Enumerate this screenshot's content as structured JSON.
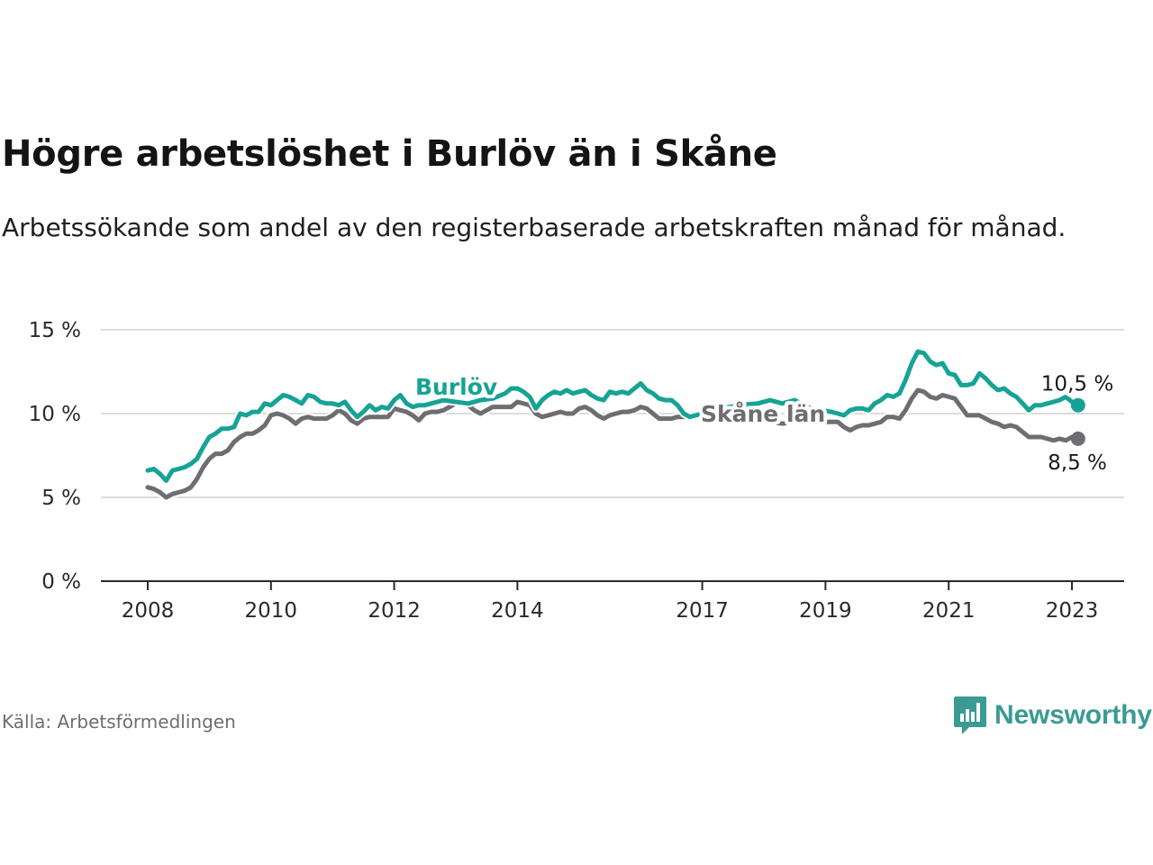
{
  "title": "Högre arbetslöshet i Burlöv än i Skåne",
  "subtitle": "Arbetssökande som andel av den registerbaserade arbetskraften månad för månad.",
  "source": "Källa: Arbetsförmedlingen",
  "brand": {
    "name": "Newsworthy",
    "icon": "newsworthy-logo-icon",
    "color": "#3a9a94"
  },
  "chart_data": {
    "type": "line",
    "title": "Högre arbetslöshet i Burlöv än i Skåne",
    "xlabel": "",
    "ylabel": "",
    "xlim": [
      2008,
      2023.1
    ],
    "ylim": [
      0,
      15
    ],
    "xticks": [
      {
        "value": 2008,
        "label": "2008"
      },
      {
        "value": 2010,
        "label": "2010"
      },
      {
        "value": 2012,
        "label": "2012"
      },
      {
        "value": 2014,
        "label": "2014"
      },
      {
        "value": 2017,
        "label": "2017"
      },
      {
        "value": 2019,
        "label": "2019"
      },
      {
        "value": 2021,
        "label": "2021"
      },
      {
        "value": 2023,
        "label": "2023"
      }
    ],
    "yticks": [
      {
        "value": 0,
        "label": "0 %"
      },
      {
        "value": 5,
        "label": "5 %"
      },
      {
        "value": 10,
        "label": "10 %"
      },
      {
        "value": 15,
        "label": "15 %"
      }
    ],
    "grid": true,
    "series": [
      {
        "name": "Burlöv",
        "color": "#16a395",
        "end_label": "10,5 %",
        "points": [
          [
            2008.0,
            6.6
          ],
          [
            2008.1,
            6.7
          ],
          [
            2008.2,
            6.4
          ],
          [
            2008.3,
            6.0
          ],
          [
            2008.4,
            6.6
          ],
          [
            2008.5,
            6.7
          ],
          [
            2008.6,
            6.8
          ],
          [
            2008.7,
            7.0
          ],
          [
            2008.8,
            7.3
          ],
          [
            2008.9,
            8.0
          ],
          [
            2009.0,
            8.6
          ],
          [
            2009.1,
            8.8
          ],
          [
            2009.2,
            9.1
          ],
          [
            2009.3,
            9.1
          ],
          [
            2009.4,
            9.2
          ],
          [
            2009.5,
            10.0
          ],
          [
            2009.6,
            9.9
          ],
          [
            2009.7,
            10.1
          ],
          [
            2009.8,
            10.1
          ],
          [
            2009.9,
            10.6
          ],
          [
            2010.0,
            10.5
          ],
          [
            2010.1,
            10.8
          ],
          [
            2010.2,
            11.1
          ],
          [
            2010.3,
            11.0
          ],
          [
            2010.4,
            10.8
          ],
          [
            2010.5,
            10.6
          ],
          [
            2010.6,
            11.1
          ],
          [
            2010.7,
            11.0
          ],
          [
            2010.8,
            10.7
          ],
          [
            2010.9,
            10.6
          ],
          [
            2011.0,
            10.6
          ],
          [
            2011.1,
            10.5
          ],
          [
            2011.2,
            10.7
          ],
          [
            2011.3,
            10.2
          ],
          [
            2011.4,
            9.8
          ],
          [
            2011.5,
            10.1
          ],
          [
            2011.6,
            10.5
          ],
          [
            2011.7,
            10.2
          ],
          [
            2011.8,
            10.4
          ],
          [
            2011.9,
            10.3
          ],
          [
            2012.0,
            10.8
          ],
          [
            2012.1,
            11.1
          ],
          [
            2012.2,
            10.6
          ],
          [
            2012.3,
            10.4
          ],
          [
            2012.4,
            10.5
          ],
          [
            2012.5,
            10.5
          ],
          [
            2012.6,
            10.6
          ],
          [
            2012.7,
            10.7
          ],
          [
            2012.8,
            10.8
          ],
          [
            2013.0,
            10.7
          ],
          [
            2013.2,
            10.6
          ],
          [
            2013.4,
            10.8
          ],
          [
            2013.6,
            10.9
          ],
          [
            2013.8,
            11.2
          ],
          [
            2013.9,
            11.5
          ],
          [
            2014.0,
            11.5
          ],
          [
            2014.1,
            11.3
          ],
          [
            2014.2,
            11.0
          ],
          [
            2014.3,
            10.3
          ],
          [
            2014.4,
            10.8
          ],
          [
            2014.5,
            11.1
          ],
          [
            2014.6,
            11.3
          ],
          [
            2014.7,
            11.2
          ],
          [
            2014.8,
            11.4
          ],
          [
            2014.9,
            11.2
          ],
          [
            2015.0,
            11.3
          ],
          [
            2015.1,
            11.4
          ],
          [
            2015.2,
            11.1
          ],
          [
            2015.3,
            10.9
          ],
          [
            2015.4,
            10.8
          ],
          [
            2015.5,
            11.3
          ],
          [
            2015.6,
            11.2
          ],
          [
            2015.7,
            11.3
          ],
          [
            2015.8,
            11.2
          ],
          [
            2015.9,
            11.5
          ],
          [
            2016.0,
            11.8
          ],
          [
            2016.1,
            11.4
          ],
          [
            2016.2,
            11.2
          ],
          [
            2016.3,
            10.9
          ],
          [
            2016.4,
            10.8
          ],
          [
            2016.5,
            10.8
          ],
          [
            2016.6,
            10.5
          ],
          [
            2016.7,
            10.0
          ],
          [
            2016.8,
            9.8
          ],
          [
            2017.0,
            10.0
          ],
          [
            2017.3,
            10.3
          ],
          [
            2017.6,
            10.5
          ],
          [
            2017.9,
            10.6
          ],
          [
            2018.1,
            10.8
          ],
          [
            2018.3,
            10.6
          ],
          [
            2018.5,
            10.8
          ],
          [
            2018.7,
            10.4
          ],
          [
            2018.9,
            10.2
          ],
          [
            2019.1,
            10.1
          ],
          [
            2019.3,
            9.9
          ],
          [
            2019.4,
            10.2
          ],
          [
            2019.5,
            10.3
          ],
          [
            2019.6,
            10.3
          ],
          [
            2019.7,
            10.2
          ],
          [
            2019.8,
            10.6
          ],
          [
            2019.9,
            10.8
          ],
          [
            2020.0,
            11.1
          ],
          [
            2020.1,
            11.0
          ],
          [
            2020.2,
            11.2
          ],
          [
            2020.3,
            12.0
          ],
          [
            2020.4,
            13.0
          ],
          [
            2020.5,
            13.7
          ],
          [
            2020.6,
            13.6
          ],
          [
            2020.7,
            13.1
          ],
          [
            2020.8,
            12.9
          ],
          [
            2020.9,
            13.0
          ],
          [
            2021.0,
            12.4
          ],
          [
            2021.1,
            12.3
          ],
          [
            2021.2,
            11.7
          ],
          [
            2021.3,
            11.7
          ],
          [
            2021.4,
            11.8
          ],
          [
            2021.5,
            12.4
          ],
          [
            2021.6,
            12.1
          ],
          [
            2021.7,
            11.7
          ],
          [
            2021.8,
            11.4
          ],
          [
            2021.9,
            11.5
          ],
          [
            2022.0,
            11.2
          ],
          [
            2022.1,
            11.0
          ],
          [
            2022.2,
            10.6
          ],
          [
            2022.3,
            10.2
          ],
          [
            2022.4,
            10.5
          ],
          [
            2022.5,
            10.5
          ],
          [
            2022.6,
            10.6
          ],
          [
            2022.7,
            10.7
          ],
          [
            2022.8,
            10.8
          ],
          [
            2022.9,
            11.0
          ],
          [
            2023.0,
            10.7
          ],
          [
            2023.1,
            10.5
          ]
        ]
      },
      {
        "name": "Skåne län",
        "color": "#6e6e72",
        "end_label": "8,5 %",
        "points": [
          [
            2008.0,
            5.6
          ],
          [
            2008.1,
            5.5
          ],
          [
            2008.2,
            5.3
          ],
          [
            2008.3,
            5.0
          ],
          [
            2008.4,
            5.2
          ],
          [
            2008.5,
            5.3
          ],
          [
            2008.6,
            5.4
          ],
          [
            2008.7,
            5.6
          ],
          [
            2008.8,
            6.1
          ],
          [
            2008.9,
            6.8
          ],
          [
            2009.0,
            7.3
          ],
          [
            2009.1,
            7.6
          ],
          [
            2009.2,
            7.6
          ],
          [
            2009.3,
            7.8
          ],
          [
            2009.4,
            8.3
          ],
          [
            2009.5,
            8.6
          ],
          [
            2009.6,
            8.8
          ],
          [
            2009.7,
            8.8
          ],
          [
            2009.8,
            9.0
          ],
          [
            2009.9,
            9.3
          ],
          [
            2010.0,
            9.9
          ],
          [
            2010.1,
            10.0
          ],
          [
            2010.2,
            9.9
          ],
          [
            2010.3,
            9.7
          ],
          [
            2010.4,
            9.4
          ],
          [
            2010.5,
            9.7
          ],
          [
            2010.6,
            9.8
          ],
          [
            2010.7,
            9.7
          ],
          [
            2010.8,
            9.7
          ],
          [
            2010.9,
            9.7
          ],
          [
            2011.0,
            9.9
          ],
          [
            2011.1,
            10.2
          ],
          [
            2011.2,
            10.0
          ],
          [
            2011.3,
            9.6
          ],
          [
            2011.4,
            9.4
          ],
          [
            2011.5,
            9.7
          ],
          [
            2011.6,
            9.8
          ],
          [
            2011.7,
            9.8
          ],
          [
            2011.8,
            9.8
          ],
          [
            2011.9,
            9.8
          ],
          [
            2012.0,
            10.3
          ],
          [
            2012.1,
            10.2
          ],
          [
            2012.2,
            10.1
          ],
          [
            2012.3,
            9.9
          ],
          [
            2012.4,
            9.6
          ],
          [
            2012.5,
            10.0
          ],
          [
            2012.6,
            10.1
          ],
          [
            2012.7,
            10.1
          ],
          [
            2012.8,
            10.2
          ],
          [
            2012.9,
            10.4
          ],
          [
            2013.0,
            10.6
          ],
          [
            2013.1,
            10.6
          ],
          [
            2013.2,
            10.5
          ],
          [
            2013.3,
            10.2
          ],
          [
            2013.4,
            10.0
          ],
          [
            2013.5,
            10.2
          ],
          [
            2013.6,
            10.4
          ],
          [
            2013.7,
            10.4
          ],
          [
            2013.8,
            10.4
          ],
          [
            2013.9,
            10.4
          ],
          [
            2014.0,
            10.7
          ],
          [
            2014.1,
            10.6
          ],
          [
            2014.2,
            10.5
          ],
          [
            2014.3,
            10.0
          ],
          [
            2014.4,
            9.8
          ],
          [
            2014.5,
            9.9
          ],
          [
            2014.6,
            10.0
          ],
          [
            2014.7,
            10.1
          ],
          [
            2014.8,
            10.0
          ],
          [
            2014.9,
            10.0
          ],
          [
            2015.0,
            10.3
          ],
          [
            2015.1,
            10.4
          ],
          [
            2015.2,
            10.2
          ],
          [
            2015.3,
            9.9
          ],
          [
            2015.4,
            9.7
          ],
          [
            2015.5,
            9.9
          ],
          [
            2015.6,
            10.0
          ],
          [
            2015.7,
            10.1
          ],
          [
            2015.8,
            10.1
          ],
          [
            2015.9,
            10.2
          ],
          [
            2016.0,
            10.4
          ],
          [
            2016.1,
            10.3
          ],
          [
            2016.2,
            10.0
          ],
          [
            2016.3,
            9.7
          ],
          [
            2016.4,
            9.7
          ],
          [
            2016.5,
            9.7
          ],
          [
            2016.6,
            9.8
          ],
          [
            2016.7,
            9.8
          ],
          [
            2016.8,
            9.9
          ],
          [
            2017.0,
            10.0
          ],
          [
            2017.3,
            10.0
          ],
          [
            2017.6,
            9.9
          ],
          [
            2017.9,
            9.7
          ],
          [
            2018.1,
            9.5
          ],
          [
            2018.3,
            9.4
          ],
          [
            2018.5,
            9.5
          ],
          [
            2018.7,
            9.5
          ],
          [
            2018.9,
            9.5
          ],
          [
            2019.1,
            9.5
          ],
          [
            2019.2,
            9.5
          ],
          [
            2019.3,
            9.2
          ],
          [
            2019.4,
            9.0
          ],
          [
            2019.5,
            9.2
          ],
          [
            2019.6,
            9.3
          ],
          [
            2019.7,
            9.3
          ],
          [
            2019.8,
            9.4
          ],
          [
            2019.9,
            9.5
          ],
          [
            2020.0,
            9.8
          ],
          [
            2020.1,
            9.8
          ],
          [
            2020.2,
            9.7
          ],
          [
            2020.3,
            10.2
          ],
          [
            2020.4,
            10.9
          ],
          [
            2020.5,
            11.4
          ],
          [
            2020.6,
            11.3
          ],
          [
            2020.7,
            11.0
          ],
          [
            2020.8,
            10.9
          ],
          [
            2020.9,
            11.1
          ],
          [
            2021.0,
            11.0
          ],
          [
            2021.1,
            10.9
          ],
          [
            2021.2,
            10.4
          ],
          [
            2021.3,
            9.9
          ],
          [
            2021.4,
            9.9
          ],
          [
            2021.5,
            9.9
          ],
          [
            2021.6,
            9.7
          ],
          [
            2021.7,
            9.5
          ],
          [
            2021.8,
            9.4
          ],
          [
            2021.9,
            9.2
          ],
          [
            2022.0,
            9.3
          ],
          [
            2022.1,
            9.2
          ],
          [
            2022.2,
            8.9
          ],
          [
            2022.3,
            8.6
          ],
          [
            2022.4,
            8.6
          ],
          [
            2022.5,
            8.6
          ],
          [
            2022.6,
            8.5
          ],
          [
            2022.7,
            8.4
          ],
          [
            2022.8,
            8.5
          ],
          [
            2022.9,
            8.4
          ],
          [
            2023.0,
            8.6
          ],
          [
            2023.1,
            8.5
          ]
        ]
      }
    ]
  }
}
